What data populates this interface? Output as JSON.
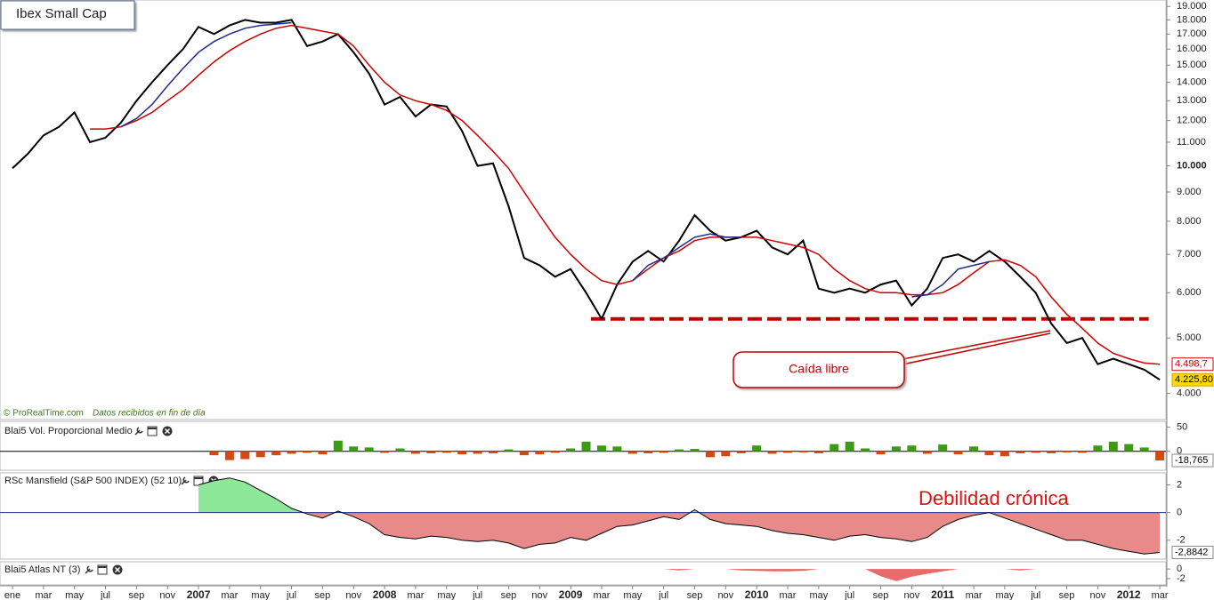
{
  "chart_data": [
    {
      "type": "line",
      "title": "Ibex Small Cap",
      "log_scale": true,
      "categories": [
        "ene",
        null,
        "mar",
        null,
        "may",
        null,
        "jul",
        null,
        "sep",
        null,
        "nov",
        null,
        "2007",
        null,
        "mar",
        null,
        "may",
        null,
        "jul",
        null,
        "sep",
        null,
        "nov",
        null,
        "2008",
        null,
        "mar",
        null,
        "may",
        null,
        "jul",
        null,
        "sep",
        null,
        "nov",
        null,
        "2009",
        null,
        "mar",
        null,
        "may",
        null,
        "jul",
        null,
        "sep",
        null,
        "nov",
        null,
        "2010",
        null,
        "mar",
        null,
        "may",
        null,
        "jul",
        null,
        "sep",
        null,
        "nov",
        null,
        "2011",
        null,
        "mar",
        null,
        "may",
        null,
        "jul",
        null,
        "sep",
        null,
        "nov",
        null,
        "2012",
        null,
        "mar"
      ],
      "series": [
        {
          "color": "#000000",
          "last_label": "4.225,80",
          "values": [
            9900,
            10500,
            11300,
            11700,
            12400,
            11000,
            11200,
            11900,
            13000,
            14000,
            15000,
            16000,
            17500,
            17000,
            17600,
            18000,
            17800,
            17800,
            18000,
            16200,
            16500,
            17000,
            15800,
            14500,
            12800,
            13200,
            12200,
            12800,
            12700,
            11500,
            10000,
            10100,
            8500,
            6900,
            6700,
            6400,
            6600,
            6000,
            5400,
            6200,
            6800,
            7100,
            6800,
            7400,
            8200,
            7700,
            7400,
            7500,
            7700,
            7200,
            7000,
            7400,
            6100,
            6000,
            6100,
            6000,
            6200,
            6300,
            5700,
            6100,
            6900,
            7000,
            6800,
            7100,
            6800,
            6400,
            6000,
            5300,
            4900,
            5000,
            4500,
            4600,
            4500,
            4400,
            4225.8
          ]
        },
        {
          "color": "#cc0000",
          "last_label": "4.498,7",
          "values": [
            null,
            null,
            null,
            null,
            null,
            11600,
            11600,
            11700,
            12000,
            12400,
            13000,
            13600,
            14400,
            15200,
            15900,
            16500,
            17000,
            17400,
            17600,
            17400,
            17200,
            17000,
            16200,
            15000,
            14000,
            13300,
            13000,
            12800,
            12500,
            12000,
            11300,
            10600,
            9900,
            9000,
            8200,
            7500,
            7000,
            6600,
            6300,
            6200,
            6300,
            6600,
            6900,
            7100,
            7400,
            7500,
            7500,
            7500,
            7500,
            7400,
            7300,
            7200,
            7000,
            6600,
            6300,
            6100,
            6000,
            6000,
            5950,
            5950,
            6000,
            6200,
            6500,
            6800,
            6850,
            6700,
            6400,
            5900,
            5500,
            5200,
            4900,
            4700,
            4600,
            4520,
            4498.7
          ]
        },
        {
          "color": "#1f2a8c",
          "values": [
            null,
            null,
            null,
            null,
            null,
            null,
            null,
            11700,
            12100,
            12800,
            13800,
            14800,
            15800,
            16500,
            17000,
            17400,
            17600,
            17700,
            17800,
            null,
            null,
            null,
            null,
            null,
            null,
            null,
            null,
            null,
            null,
            null,
            null,
            null,
            null,
            null,
            null,
            null,
            null,
            null,
            null,
            null,
            6300,
            6700,
            6900,
            7200,
            7500,
            7600,
            7500,
            7500,
            null,
            null,
            null,
            null,
            null,
            null,
            null,
            null,
            null,
            null,
            5900,
            5950,
            6200,
            6600,
            6700,
            6800,
            null,
            null,
            null,
            null,
            null,
            null,
            null,
            null,
            null,
            null,
            null
          ]
        }
      ],
      "ylim": [
        3600,
        19500
      ],
      "yticks": [
        {
          "value": 4000,
          "label": "4.000"
        },
        {
          "value": 5000,
          "label": "5.000"
        },
        {
          "value": 6000,
          "label": "6.000"
        },
        {
          "value": 7000,
          "label": "7.000"
        },
        {
          "value": 8000,
          "label": "8.000"
        },
        {
          "value": 9000,
          "label": "9.000"
        },
        {
          "value": 10000,
          "label": "10.000"
        },
        {
          "value": 11000,
          "label": "11.000"
        },
        {
          "value": 12000,
          "label": "12.000"
        },
        {
          "value": 13000,
          "label": "13.000"
        },
        {
          "value": 14000,
          "label": "14.000"
        },
        {
          "value": 15000,
          "label": "15.000"
        },
        {
          "value": 16000,
          "label": "16.000"
        },
        {
          "value": 17000,
          "label": "17.000"
        },
        {
          "value": 18000,
          "label": "18.000"
        },
        {
          "value": 19000,
          "label": "19.000"
        }
      ],
      "hline": {
        "value": 5400,
        "color": "#c00000"
      },
      "annotations": [
        "Caída libre"
      ],
      "credit": "© ProRealTime.com",
      "note": "Datos recibidos en fin de día"
    },
    {
      "type": "bar",
      "title": "Blai5 Vol. Proporcional Medio",
      "last_label": "-18,765",
      "colors": {
        "positive": "#3c9a16",
        "negative": "#d24a12"
      },
      "values": [
        null,
        null,
        null,
        null,
        null,
        null,
        null,
        null,
        null,
        null,
        null,
        null,
        null,
        -8,
        -18,
        -16,
        -12,
        -8,
        -5,
        -3,
        -6,
        22,
        10,
        8,
        -3,
        6,
        -5,
        -4,
        -3,
        -6,
        -5,
        -4,
        4,
        -8,
        -6,
        -3,
        6,
        20,
        12,
        10,
        -5,
        -4,
        -3,
        4,
        5,
        -12,
        -10,
        -4,
        12,
        -5,
        -3,
        -2,
        -4,
        15,
        20,
        6,
        -6,
        10,
        12,
        -5,
        14,
        -6,
        10,
        -8,
        -10,
        -4,
        -3,
        -4,
        -2,
        -3,
        12,
        20,
        15,
        8,
        -18.765
      ],
      "ylim": [
        -37,
        60
      ],
      "yticks": [
        50,
        0
      ]
    },
    {
      "type": "area",
      "title": "RSc Mansfield (S&P 500 INDEX) (52 10)",
      "last_label": "-2,8842",
      "colors": {
        "positive": "#8ee89a",
        "negative": "#e88a8a",
        "line": "#000000",
        "zero": "#1f2a8c"
      },
      "values": [
        null,
        null,
        null,
        null,
        null,
        null,
        null,
        null,
        null,
        null,
        null,
        null,
        2.0,
        2.3,
        2.5,
        2.2,
        1.6,
        1.0,
        0.3,
        -0.1,
        -0.4,
        0.1,
        -0.3,
        -0.8,
        -1.6,
        -1.8,
        -1.9,
        -1.7,
        -1.8,
        -2.0,
        -2.1,
        -2.0,
        -2.2,
        -2.6,
        -2.3,
        -2.2,
        -1.8,
        -2.0,
        -1.5,
        -1.0,
        -0.9,
        -0.6,
        -0.3,
        -0.5,
        0.2,
        -0.5,
        -0.8,
        -0.9,
        -1.0,
        -1.3,
        -1.5,
        -1.6,
        -1.8,
        -2.0,
        -1.7,
        -1.6,
        -1.8,
        -1.9,
        -2.1,
        -1.8,
        -1.0,
        -0.5,
        -0.2,
        0.0,
        -0.4,
        -0.8,
        -1.2,
        -1.6,
        -2.0,
        -2.0,
        -2.3,
        -2.6,
        -2.8,
        -3.0,
        -2.8842
      ],
      "ylim": [
        -3.3,
        2.8
      ],
      "yticks": [
        2,
        0,
        -2
      ],
      "annotations": [
        "Debilidad crónica"
      ]
    },
    {
      "type": "area",
      "title": "Blai5 Atlas NT (3)",
      "colors": {
        "positive": "#8ee89a",
        "negative": "#e86a6a"
      },
      "values": [
        null,
        null,
        null,
        null,
        null,
        null,
        null,
        null,
        null,
        null,
        null,
        null,
        0,
        0,
        0,
        0,
        0,
        0,
        0,
        0,
        0,
        0,
        0,
        0,
        0,
        0,
        0,
        0,
        0,
        0,
        0,
        0,
        0,
        0,
        0,
        0,
        0,
        0,
        0,
        0,
        0,
        0,
        0,
        -0.3,
        0,
        0,
        0,
        -0.3,
        -0.4,
        -0.5,
        -0.5,
        -0.4,
        0,
        0,
        0,
        0,
        -1.5,
        -2.5,
        -1.6,
        -1.0,
        -0.5,
        0,
        0,
        0,
        0,
        -0.3,
        0,
        0,
        0,
        0,
        0,
        0,
        0,
        0,
        0
      ],
      "ylim": [
        -3.3,
        1.5
      ],
      "yticks": [
        0,
        -2
      ]
    }
  ]
}
